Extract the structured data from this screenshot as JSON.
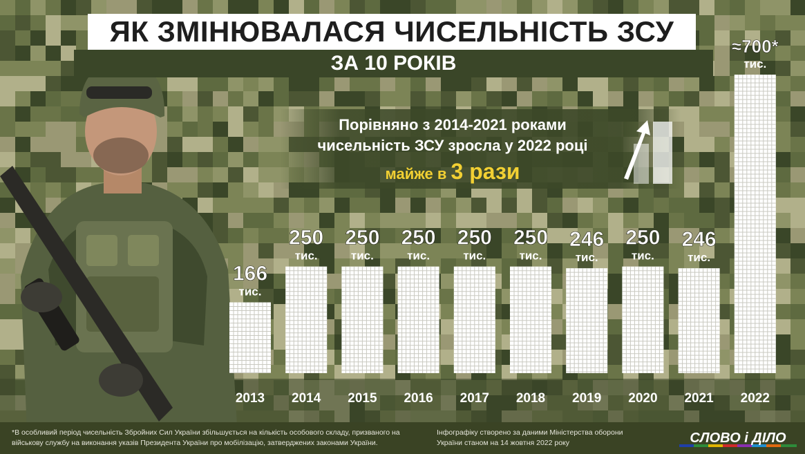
{
  "header": {
    "title": "ЯК ЗМІНЮВАЛАСЯ ЧИСЕЛЬНІСТЬ ЗСУ",
    "subtitle": "ЗА 10 РОКІВ"
  },
  "comparison": {
    "line1": "Порівняно з 2014-2021 роками",
    "line2": "чисельність ЗСУ зросла у 2022 році",
    "line3_prefix": "майже в",
    "line3_big": "3 рази"
  },
  "chart_data": {
    "type": "bar",
    "categories": [
      "2013",
      "2014",
      "2015",
      "2016",
      "2017",
      "2018",
      "2019",
      "2020",
      "2021",
      "2022"
    ],
    "values": [
      166,
      250,
      250,
      250,
      250,
      250,
      246,
      250,
      246,
      700
    ],
    "value_labels": [
      "166",
      "250",
      "250",
      "250",
      "250",
      "250",
      "246",
      "250",
      "246",
      "≈700*"
    ],
    "unit_label": "тис.",
    "title": "ЯК ЗМІНЮВАЛАСЯ ЧИСЕЛЬНІСТЬ ЗСУ",
    "subtitle": "ЗА 10 РОКІВ",
    "xlabel": "",
    "ylabel": "",
    "ylim": [
      0,
      700
    ],
    "grid": false,
    "legend": "none"
  },
  "footer": {
    "note": "*В особливий період чисельність Збройних Сил України збільшується на кількість особового складу, призваного на військову службу на виконання указів Президента України про мобілізацію, затверджених законами України.",
    "source": "Інфографіку створено за даними Міністерства оборони України станом на 14 жовтня 2022 року",
    "brand": "СЛОВО і ДІЛО"
  },
  "colors": {
    "camo_dark": "#3a4628",
    "camo_mid": "#7c8456",
    "camo_light": "#b1b08a",
    "bar": "#ffffff",
    "accent": "#f2d033"
  }
}
